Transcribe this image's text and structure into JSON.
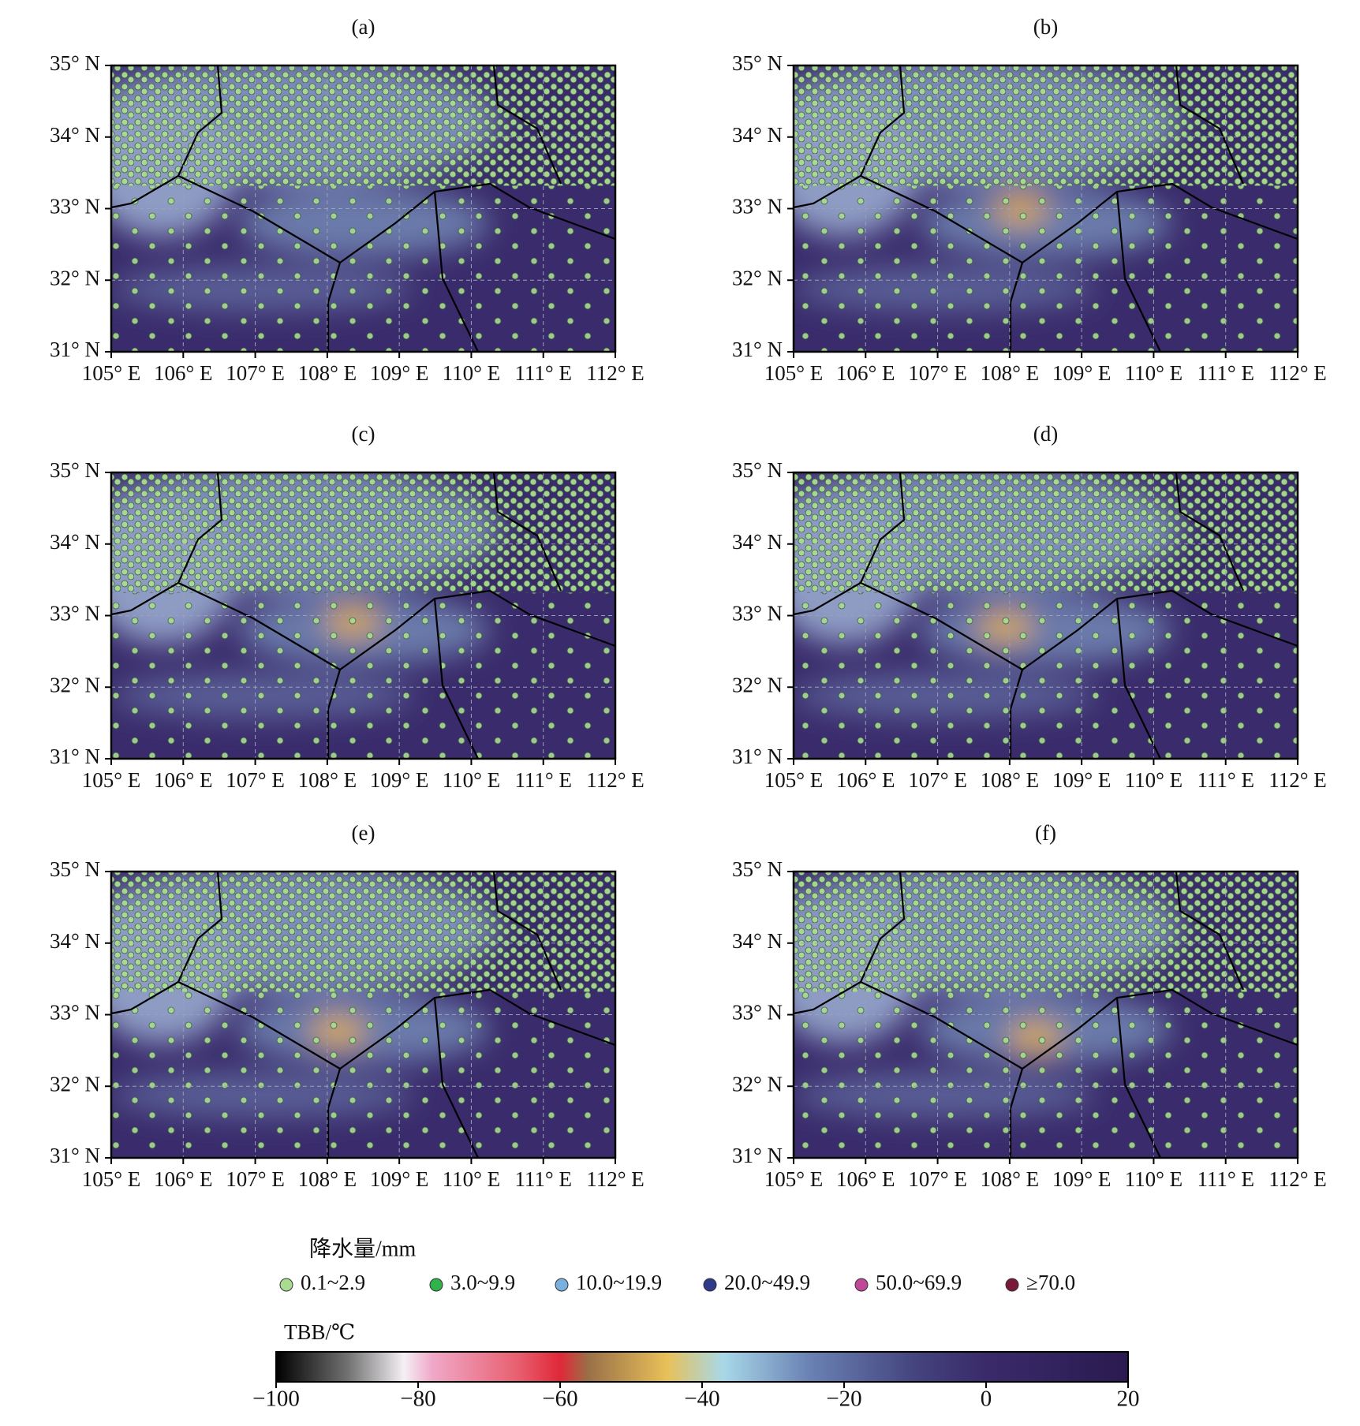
{
  "panels": [
    {
      "label": "(a)"
    },
    {
      "label": "(b)"
    },
    {
      "label": "(c)"
    },
    {
      "label": "(d)"
    },
    {
      "label": "(e)"
    },
    {
      "label": "(f)"
    }
  ],
  "map": {
    "xlim": [
      105,
      112
    ],
    "ylim": [
      31,
      35
    ],
    "xticks": [
      {
        "value": 105,
        "label": "105° E"
      },
      {
        "value": 106,
        "label": "106° E"
      },
      {
        "value": 107,
        "label": "107° E"
      },
      {
        "value": 108,
        "label": "108° E"
      },
      {
        "value": 109,
        "label": "109° E"
      },
      {
        "value": 110,
        "label": "110° E"
      },
      {
        "value": 111,
        "label": "111° E"
      },
      {
        "value": 112,
        "label": "112° E"
      }
    ],
    "yticks": [
      {
        "value": 31,
        "label": "31° N"
      },
      {
        "value": 32,
        "label": "32° N"
      },
      {
        "value": 33,
        "label": "33° N"
      },
      {
        "value": 34,
        "label": "34° N"
      },
      {
        "value": 35,
        "label": "35° N"
      }
    ]
  },
  "legend": {
    "title": "降水量/mm",
    "items": [
      {
        "label": "0.1~2.9",
        "color": "#a8dc90"
      },
      {
        "label": "3.0~9.9",
        "color": "#2fb34a"
      },
      {
        "label": "10.0~19.9",
        "color": "#7ab0e0"
      },
      {
        "label": "20.0~49.9",
        "color": "#303a8a"
      },
      {
        "label": "50.0~69.9",
        "color": "#c04898"
      },
      {
        "label": "≥70.0",
        "color": "#7a1838"
      }
    ]
  },
  "colorbar": {
    "title": "TBB/℃",
    "lim": [
      -100,
      20
    ],
    "ticks": [
      {
        "value": -100,
        "label": "−100"
      },
      {
        "value": -80,
        "label": "−80"
      },
      {
        "value": -60,
        "label": "−60"
      },
      {
        "value": -40,
        "label": "−40"
      },
      {
        "value": -20,
        "label": "−20"
      },
      0,
      20
    ],
    "stops": [
      {
        "value": -100,
        "color": "#000000"
      },
      {
        "value": -90,
        "color": "#707070"
      },
      {
        "value": -82,
        "color": "#f4f0f4"
      },
      {
        "value": -78,
        "color": "#f0a8c8"
      },
      {
        "value": -66,
        "color": "#e86070"
      },
      {
        "value": -60,
        "color": "#e02838"
      },
      {
        "value": -56,
        "color": "#9a7048"
      },
      {
        "value": -45,
        "color": "#e8c058"
      },
      {
        "value": -37,
        "color": "#a8d8e8"
      },
      {
        "value": -25,
        "color": "#6a82b4"
      },
      {
        "value": -10,
        "color": "#44447e"
      },
      {
        "value": 0,
        "color": "#3a2a6a"
      },
      {
        "value": 20,
        "color": "#2a1a50"
      }
    ]
  }
}
